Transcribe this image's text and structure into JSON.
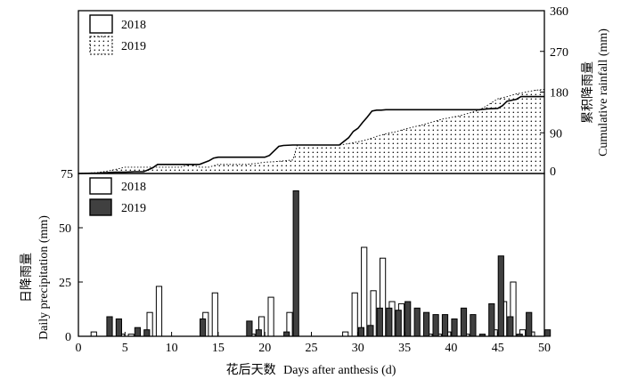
{
  "chart_data": [
    {
      "panel": "top",
      "type": "area",
      "y2label_cn": "累积降雨量",
      "y2label_en": "Cumulative rainfall (mm)",
      "yaxis_side": "right",
      "ylim": [
        0,
        360
      ],
      "yticks": [
        0,
        90,
        180,
        270,
        360
      ],
      "left_label": "75",
      "xlim": [
        0,
        50
      ],
      "legend": {
        "placement": "top-left",
        "entries": [
          "2018",
          "2019"
        ]
      },
      "series": [
        {
          "name": "2018",
          "style": "solid line",
          "x": [
            0,
            2,
            3,
            4,
            5,
            6,
            7,
            7.5,
            8,
            8.5,
            13,
            13.5,
            14,
            14.5,
            15,
            20,
            20.5,
            21,
            21.5,
            22,
            23,
            28,
            29,
            29.5,
            30,
            30.5,
            31,
            31.5,
            32,
            32.5,
            33,
            43,
            44,
            45,
            45.5,
            46,
            47,
            47.5,
            50
          ],
          "y": [
            0,
            1,
            2,
            3,
            3,
            4,
            4,
            8,
            13,
            20,
            20,
            24,
            28,
            34,
            36,
            36,
            40,
            50,
            60,
            62,
            63,
            63,
            79,
            93,
            100,
            113,
            125,
            138,
            140,
            140,
            141,
            141,
            143,
            144,
            150,
            160,
            164,
            170,
            170
          ]
        },
        {
          "name": "2019",
          "style": "dotted fill",
          "x": [
            0,
            2,
            3,
            4,
            5,
            6,
            7,
            8,
            9,
            10,
            11,
            12,
            13,
            14,
            15,
            16,
            17,
            18,
            19,
            20,
            21,
            22,
            23,
            23.5,
            24,
            25,
            26,
            27,
            28,
            29,
            30,
            31,
            32,
            33,
            34,
            35,
            36,
            37,
            38,
            39,
            40,
            41,
            42,
            43,
            44,
            45,
            46,
            47,
            48,
            49,
            50
          ],
          "y": [
            0,
            2,
            5,
            9,
            14,
            14,
            14,
            14,
            14,
            14,
            14,
            20,
            14,
            14,
            20,
            20,
            20,
            20,
            22,
            25,
            26,
            28,
            30,
            63,
            63,
            63,
            63,
            63,
            63,
            66,
            70,
            75,
            82,
            88,
            92,
            98,
            103,
            108,
            114,
            120,
            124,
            128,
            134,
            140,
            152,
            165,
            170,
            176,
            180,
            184,
            186
          ]
        }
      ]
    },
    {
      "panel": "bottom",
      "type": "bar",
      "ylabel_cn": "日降雨量",
      "ylabel_en": "Daily precipitation (mm)",
      "ylim": [
        0,
        75
      ],
      "yticks": [
        0,
        25,
        50,
        75
      ],
      "xlim": [
        0,
        50
      ],
      "xticks": [
        0,
        5,
        10,
        15,
        20,
        25,
        30,
        35,
        40,
        45,
        50
      ],
      "xlabel_cn": "花后天数",
      "xlabel_en": "Days after anthesis (d)",
      "legend": {
        "placement": "top-left",
        "entries": [
          "2018",
          "2019"
        ]
      },
      "series": [
        {
          "name": "2018",
          "color": "#ffffff",
          "x": [
            2,
            5,
            6,
            8,
            9,
            14,
            15,
            19,
            20,
            21,
            23,
            29,
            30,
            31,
            32,
            33,
            34,
            35,
            38,
            39,
            40,
            42,
            45,
            46,
            47,
            48,
            49
          ],
          "values": [
            2,
            1,
            1,
            11,
            23,
            11,
            20,
            1,
            9,
            18,
            11,
            2,
            20,
            41,
            21,
            36,
            16,
            15,
            1,
            1,
            2,
            1,
            3,
            16,
            25,
            3,
            2
          ]
        },
        {
          "name": "2019",
          "color": "#404040",
          "x": [
            3,
            4,
            6,
            7,
            13,
            18,
            19,
            22,
            23,
            30,
            31,
            32,
            33,
            34,
            35,
            36,
            37,
            38,
            39,
            40,
            41,
            42,
            43,
            44,
            45,
            46,
            47,
            48,
            50
          ],
          "values": [
            9,
            8,
            4,
            3,
            8,
            7,
            3,
            2,
            67,
            4,
            5,
            13,
            13,
            12,
            16,
            13,
            11,
            10,
            10,
            8,
            13,
            10,
            1,
            15,
            37,
            9,
            1,
            11,
            3
          ]
        }
      ]
    }
  ]
}
